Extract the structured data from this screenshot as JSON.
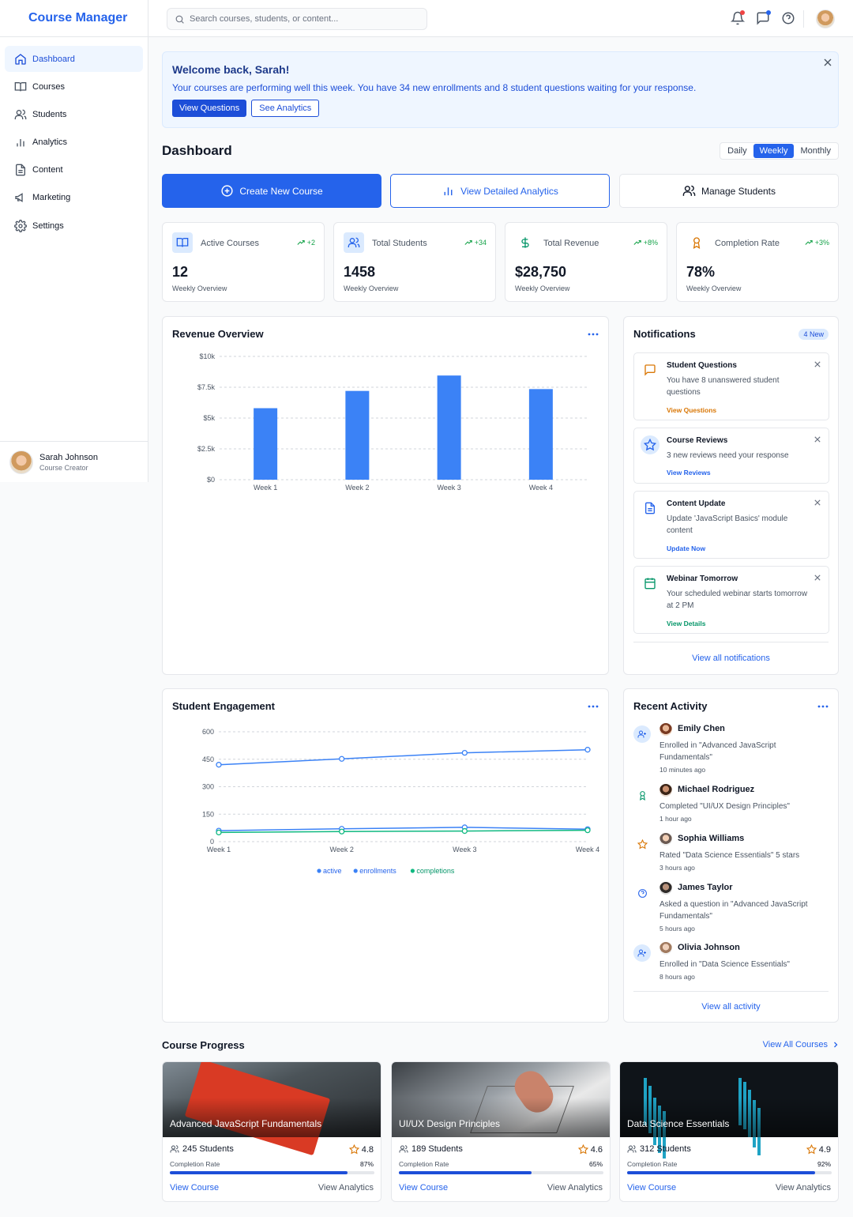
{
  "app": {
    "title": "Course Manager"
  },
  "search": {
    "placeholder": "Search courses, students, or content..."
  },
  "sidebar": {
    "items": [
      {
        "label": "Dashboard",
        "icon": "home-icon",
        "active": true
      },
      {
        "label": "Courses",
        "icon": "book-open-icon"
      },
      {
        "label": "Students",
        "icon": "users-icon"
      },
      {
        "label": "Analytics",
        "icon": "bar-chart-icon"
      },
      {
        "label": "Content",
        "icon": "file-text-icon"
      },
      {
        "label": "Marketing",
        "icon": "megaphone-icon"
      },
      {
        "label": "Settings",
        "icon": "gear-icon"
      }
    ],
    "profile": {
      "name": "Sarah Johnson",
      "role": "Course Creator"
    }
  },
  "welcome": {
    "title": "Welcome back, Sarah!",
    "message": "Your courses are performing well this week. You have 34 new enrollments and 8 student questions waiting for your response.",
    "primary_button": "View Questions",
    "secondary_button": "See Analytics"
  },
  "dashboard": {
    "title": "Dashboard",
    "periods": [
      "Daily",
      "Weekly",
      "Monthly"
    ],
    "selected_period": "Weekly"
  },
  "actions": {
    "create": "Create New Course",
    "analytics": "View Detailed Analytics",
    "students": "Manage Students"
  },
  "stats": [
    {
      "label": "Active Courses",
      "trend": "+2",
      "value": "12",
      "sub": "Weekly Overview",
      "icon": "book-open-icon"
    },
    {
      "label": "Total Students",
      "trend": "+34",
      "value": "1458",
      "sub": "Weekly Overview",
      "icon": "users-icon"
    },
    {
      "label": "Total Revenue",
      "trend": "+8%",
      "value": "$28,750",
      "sub": "Weekly Overview",
      "icon": "dollar-icon"
    },
    {
      "label": "Completion Rate",
      "trend": "+3%",
      "value": "78%",
      "sub": "Weekly Overview",
      "icon": "award-icon"
    }
  ],
  "revenue": {
    "title": "Revenue Overview"
  },
  "engagement": {
    "title": "Student Engagement"
  },
  "chart_data": [
    {
      "type": "bar",
      "title": "Revenue Overview",
      "categories": [
        "Week 1",
        "Week 2",
        "Week 3",
        "Week 4"
      ],
      "values": [
        5800,
        7200,
        8450,
        7350
      ],
      "ylim": [
        0,
        10000
      ],
      "yticks": [
        0,
        2500,
        5000,
        7500,
        10000
      ],
      "ytick_labels": [
        "$0",
        "$2.5k",
        "$5k",
        "$7.5k",
        "$10k"
      ],
      "grid": true,
      "color": "#3b82f6"
    },
    {
      "type": "line",
      "title": "Student Engagement",
      "categories": [
        "Week 1",
        "Week 2",
        "Week 3",
        "Week 4"
      ],
      "ylim": [
        0,
        600
      ],
      "yticks": [
        0,
        150,
        300,
        450,
        600
      ],
      "grid": true,
      "legend": "bottom",
      "series": [
        {
          "name": "active",
          "values": [
            420,
            452,
            485,
            502
          ],
          "color": "#3b82f6"
        },
        {
          "name": "enrollments",
          "values": [
            60,
            70,
            78,
            68
          ],
          "color": "#3b82f6"
        },
        {
          "name": "completions",
          "values": [
            50,
            55,
            58,
            62
          ],
          "color": "#10b981"
        }
      ]
    }
  ],
  "notifications": {
    "title": "Notifications",
    "badge": "4 New",
    "items": [
      {
        "title": "Student Questions",
        "desc": "You have 8 unanswered student questions",
        "link": "View Questions",
        "icon": "message-icon",
        "color": "#d97706"
      },
      {
        "title": "Course Reviews",
        "desc": "3 new reviews need your response",
        "link": "View Reviews",
        "icon": "star-icon",
        "color": "#2563eb"
      },
      {
        "title": "Content Update",
        "desc": "Update 'JavaScript Basics' module content",
        "link": "Update Now",
        "icon": "file-text-icon",
        "color": "#2563eb"
      },
      {
        "title": "Webinar Tomorrow",
        "desc": "Your scheduled webinar starts tomorrow at 2 PM",
        "link": "View Details",
        "icon": "calendar-icon",
        "color": "#059669"
      }
    ],
    "view_all": "View all notifications"
  },
  "activity": {
    "title": "Recent Activity",
    "items": [
      {
        "name": "Emily Chen",
        "desc": "Enrolled in \"Advanced JavaScript Fundamentals\"",
        "time": "10 minutes ago",
        "icon": "user-plus-icon"
      },
      {
        "name": "Michael Rodriguez",
        "desc": "Completed \"UI/UX Design Principles\"",
        "time": "1 hour ago",
        "icon": "award-icon"
      },
      {
        "name": "Sophia Williams",
        "desc": "Rated \"Data Science Essentials\" 5 stars",
        "time": "3 hours ago",
        "icon": "star-icon"
      },
      {
        "name": "James Taylor",
        "desc": "Asked a question in \"Advanced JavaScript Fundamentals\"",
        "time": "5 hours ago",
        "icon": "help-circle-icon"
      },
      {
        "name": "Olivia Johnson",
        "desc": "Enrolled in \"Data Science Essentials\"",
        "time": "8 hours ago",
        "icon": "user-plus-icon"
      }
    ],
    "view_all": "View all activity"
  },
  "courses": {
    "title": "Course Progress",
    "view_all": "View All Courses",
    "items": [
      {
        "name": "Advanced JavaScript Fundamentals",
        "students": "245 Students",
        "rating": "4.8",
        "rate_label": "Completion Rate",
        "rate": "87%",
        "progress": 0.87,
        "view": "View Course",
        "analytics": "View Analytics"
      },
      {
        "name": "UI/UX Design Principles",
        "students": "189 Students",
        "rating": "4.6",
        "rate_label": "Completion Rate",
        "rate": "65%",
        "progress": 0.65,
        "view": "View Course",
        "analytics": "View Analytics"
      },
      {
        "name": "Data Science Essentials",
        "students": "312 Students",
        "rating": "4.9",
        "rate_label": "Completion Rate",
        "rate": "92%",
        "progress": 0.92,
        "view": "View Course",
        "analytics": "View Analytics"
      }
    ]
  },
  "colors": {
    "primary": "#2563eb",
    "success": "#16a34a",
    "warning": "#d97706"
  }
}
